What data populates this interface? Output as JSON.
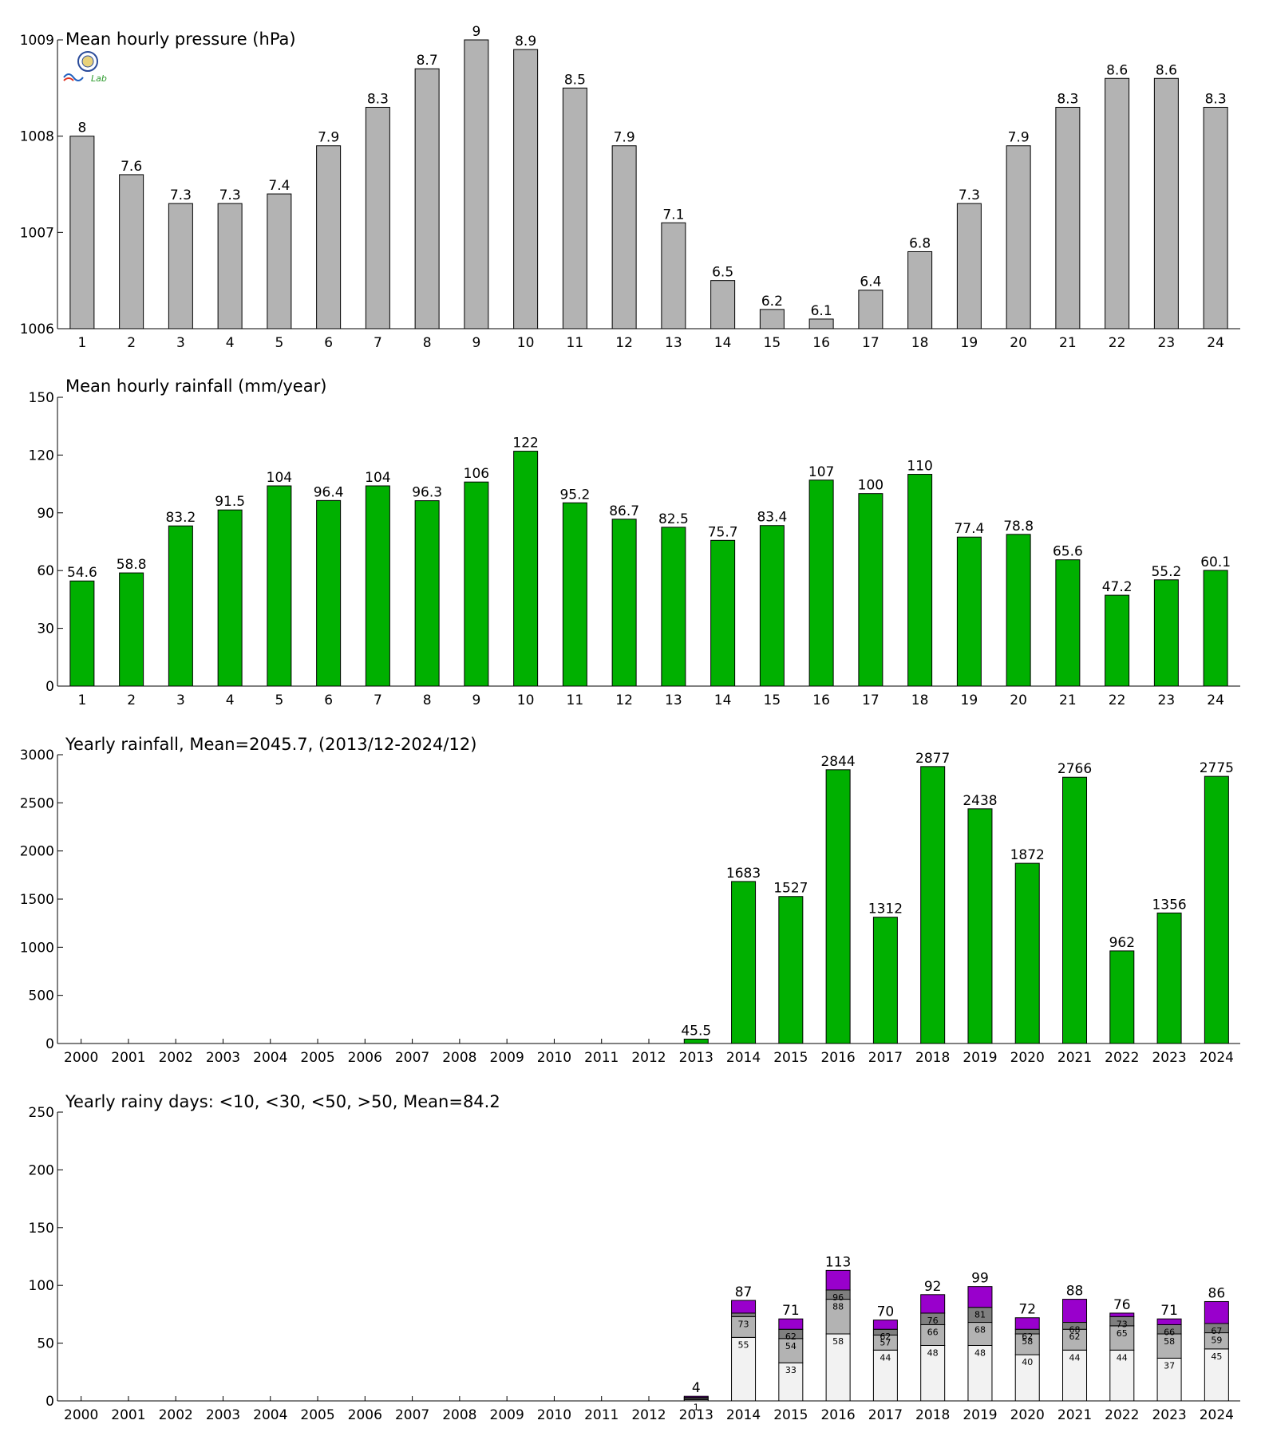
{
  "colors": {
    "pressure_bar": "#b3b3b3",
    "rain_bar": "#00b000",
    "days_lt10": "#f2f2f2",
    "days_lt30": "#b3b3b3",
    "days_lt50": "#7f7f7f",
    "days_gt50": "#9900cc",
    "outline": "#000000"
  },
  "logo": {
    "text": "Lab",
    "icon": "seal-logo-icon"
  },
  "chart_data": [
    {
      "type": "bar",
      "title": "Mean hourly pressure (hPa)",
      "categories": [
        "1",
        "2",
        "3",
        "4",
        "5",
        "6",
        "7",
        "8",
        "9",
        "10",
        "11",
        "12",
        "13",
        "14",
        "15",
        "16",
        "17",
        "18",
        "19",
        "20",
        "21",
        "22",
        "23",
        "24"
      ],
      "values": [
        1008.0,
        1007.6,
        1007.3,
        1007.3,
        1007.4,
        1007.9,
        1008.3,
        1008.7,
        1009.0,
        1008.9,
        1008.5,
        1007.9,
        1007.1,
        1006.5,
        1006.2,
        1006.1,
        1006.4,
        1006.8,
        1007.3,
        1007.9,
        1008.3,
        1008.6,
        1008.6,
        1008.3
      ],
      "data_labels": [
        "8",
        "7.6",
        "7.3",
        "7.3",
        "7.4",
        "7.9",
        "8.3",
        "8.7",
        "9",
        "8.9",
        "8.5",
        "7.9",
        "7.1",
        "6.5",
        "6.2",
        "6.1",
        "6.4",
        "6.8",
        "7.3",
        "7.9",
        "8.3",
        "8.6",
        "8.6",
        "8.3"
      ],
      "ylim": [
        1006,
        1009
      ],
      "yticks": [
        "1006",
        "1007",
        "1008",
        "1009"
      ],
      "grid": false
    },
    {
      "type": "bar",
      "title": "Mean hourly rainfall (mm/year)",
      "categories": [
        "1",
        "2",
        "3",
        "4",
        "5",
        "6",
        "7",
        "8",
        "9",
        "10",
        "11",
        "12",
        "13",
        "14",
        "15",
        "16",
        "17",
        "18",
        "19",
        "20",
        "21",
        "22",
        "23",
        "24"
      ],
      "values": [
        54.6,
        58.8,
        83.2,
        91.5,
        104,
        96.4,
        104,
        96.3,
        106,
        122,
        95.2,
        86.7,
        82.5,
        75.7,
        83.4,
        107,
        100,
        110,
        77.4,
        78.8,
        65.6,
        47.2,
        55.2,
        60.1
      ],
      "data_labels": [
        "54.6",
        "58.8",
        "83.2",
        "91.5",
        "104",
        "96.4",
        "104",
        "96.3",
        "106",
        "122",
        "95.2",
        "86.7",
        "82.5",
        "75.7",
        "83.4",
        "107",
        "100",
        "110",
        "77.4",
        "78.8",
        "65.6",
        "47.2",
        "55.2",
        "60.1"
      ],
      "ylim": [
        0,
        150
      ],
      "yticks": [
        "0",
        "30",
        "60",
        "90",
        "120",
        "150"
      ],
      "grid": false
    },
    {
      "type": "bar",
      "title": "Yearly rainfall, Mean=2045.7, (2013/12-2024/12)",
      "categories": [
        "2000",
        "2001",
        "2002",
        "2003",
        "2004",
        "2005",
        "2006",
        "2007",
        "2008",
        "2009",
        "2010",
        "2011",
        "2012",
        "2013",
        "2014",
        "2015",
        "2016",
        "2017",
        "2018",
        "2019",
        "2020",
        "2021",
        "2022",
        "2023",
        "2024"
      ],
      "values": [
        0,
        0,
        0,
        0,
        0,
        0,
        0,
        0,
        0,
        0,
        0,
        0,
        0,
        45.5,
        1683,
        1527,
        2844,
        1312,
        2877,
        2438,
        1872,
        2766,
        962,
        1356,
        2775
      ],
      "data_labels": [
        "",
        "",
        "",
        "",
        "",
        "",
        "",
        "",
        "",
        "",
        "",
        "",
        "",
        "45.5",
        "1683",
        "1527",
        "2844",
        "1312",
        "2877",
        "2438",
        "1872",
        "2766",
        "962",
        "1356",
        "2775"
      ],
      "ylim": [
        0,
        3000
      ],
      "yticks": [
        "0",
        "500",
        "1000",
        "1500",
        "2000",
        "2500",
        "3000"
      ],
      "grid": false
    },
    {
      "type": "bar",
      "stacked": true,
      "title": "Yearly rainy days: <10, <30, <50, >50, Mean=84.2",
      "categories": [
        "2000",
        "2001",
        "2002",
        "2003",
        "2004",
        "2005",
        "2006",
        "2007",
        "2008",
        "2009",
        "2010",
        "2011",
        "2012",
        "2013",
        "2014",
        "2015",
        "2016",
        "2017",
        "2018",
        "2019",
        "2020",
        "2021",
        "2022",
        "2023",
        "2024"
      ],
      "cumulative": {
        "lt10": [
          0,
          0,
          0,
          0,
          0,
          0,
          0,
          0,
          0,
          0,
          0,
          0,
          0,
          1,
          55,
          33,
          58,
          44,
          48,
          48,
          40,
          44,
          44,
          37,
          45
        ],
        "lt30": [
          0,
          0,
          0,
          0,
          0,
          0,
          0,
          0,
          0,
          0,
          0,
          0,
          0,
          2,
          73,
          54,
          88,
          57,
          66,
          68,
          58,
          62,
          65,
          58,
          59
        ],
        "lt50": [
          0,
          0,
          0,
          0,
          0,
          0,
          0,
          0,
          0,
          0,
          0,
          0,
          0,
          3,
          76,
          62,
          96,
          62,
          76,
          81,
          62,
          68,
          73,
          66,
          67
        ],
        "total": [
          0,
          0,
          0,
          0,
          0,
          0,
          0,
          0,
          0,
          0,
          0,
          0,
          0,
          4,
          87,
          71,
          113,
          70,
          92,
          99,
          72,
          88,
          76,
          71,
          86
        ]
      },
      "total_labels": [
        "",
        "",
        "",
        "",
        "",
        "",
        "",
        "",
        "",
        "",
        "",
        "",
        "",
        "4",
        "87",
        "71",
        "113",
        "70",
        "92",
        "99",
        "72",
        "88",
        "76",
        "71",
        "86"
      ],
      "lt10_labels": [
        "",
        "",
        "",
        "",
        "",
        "",
        "",
        "",
        "",
        "",
        "",
        "",
        "",
        "1",
        "55",
        "33",
        "58",
        "44",
        "48",
        "48",
        "40",
        "44",
        "44",
        "37",
        "45"
      ],
      "lt30_labels": [
        "",
        "",
        "",
        "",
        "",
        "",
        "",
        "",
        "",
        "",
        "",
        "",
        "",
        "",
        "73",
        "54",
        "88",
        "57",
        "66",
        "68",
        "58",
        "62",
        "65",
        "58",
        "59"
      ],
      "lt50_labels": [
        "",
        "",
        "",
        "",
        "",
        "",
        "",
        "",
        "",
        "",
        "",
        "",
        "",
        "",
        "",
        "62",
        "96",
        "62",
        "76",
        "81",
        "62",
        "68",
        "73",
        "66",
        "67"
      ],
      "ylim": [
        0,
        250
      ],
      "yticks": [
        "0",
        "50",
        "100",
        "150",
        "200",
        "250"
      ],
      "grid": false
    }
  ]
}
